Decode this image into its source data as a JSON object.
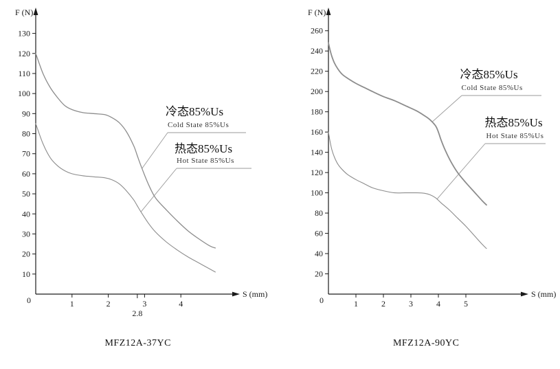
{
  "page": {
    "background": "#ffffff"
  },
  "charts": [
    {
      "caption": "MFZ12A-37YC",
      "legend": {
        "cold_cn": "冷态85%Us",
        "cold_en": "Cold State 85%Us",
        "hot_cn": "热态85%Us",
        "hot_en": "Hot State 85%Us"
      }
    },
    {
      "caption": "MFZ12A-90YC",
      "legend": {
        "cold_cn": "冷态85%Us",
        "cold_en": "Cold State 85%Us",
        "hot_cn": "热态85%Us",
        "hot_en": "Hot State 85%Us"
      }
    }
  ],
  "chart_data": [
    {
      "type": "line",
      "title": "MFZ12A-37YC",
      "xlabel": "S (mm)",
      "ylabel": "F (N)",
      "origin_label": "0",
      "xlim": [
        0,
        5.3
      ],
      "ylim": [
        0,
        135
      ],
      "xticks": [
        1,
        2,
        3,
        4
      ],
      "xtick_extra": {
        "value": 2.8,
        "label": "2.8"
      },
      "yticks": [
        10,
        20,
        30,
        40,
        50,
        60,
        70,
        80,
        90,
        100,
        110,
        120,
        130
      ],
      "grid": false,
      "legend_position": "inside-right",
      "line_color": "#8c8c8c",
      "series": [
        {
          "name": "冷态85%Us (Cold State 85%Us)",
          "key": "cold-state-curve",
          "width": 1.3,
          "points": [
            [
              0,
              120
            ],
            [
              0.2,
              110
            ],
            [
              0.4,
              103
            ],
            [
              0.6,
              98
            ],
            [
              0.8,
              94
            ],
            [
              1.0,
              92
            ],
            [
              1.3,
              90.5
            ],
            [
              1.6,
              90
            ],
            [
              1.9,
              89.5
            ],
            [
              2.1,
              88
            ],
            [
              2.3,
              85.5
            ],
            [
              2.5,
              81
            ],
            [
              2.7,
              74
            ],
            [
              2.8,
              69
            ],
            [
              2.9,
              64
            ],
            [
              3.1,
              55
            ],
            [
              3.3,
              48
            ],
            [
              3.6,
              42
            ],
            [
              3.9,
              36.5
            ],
            [
              4.2,
              31.5
            ],
            [
              4.5,
              27.5
            ],
            [
              4.8,
              24
            ],
            [
              4.95,
              23
            ]
          ]
        },
        {
          "name": "热态85%Us (Hot State 85%Us)",
          "key": "hot-state-curve",
          "width": 1.1,
          "points": [
            [
              0,
              85
            ],
            [
              0.2,
              75
            ],
            [
              0.4,
              68
            ],
            [
              0.6,
              64
            ],
            [
              0.8,
              61.5
            ],
            [
              1.0,
              60
            ],
            [
              1.3,
              59
            ],
            [
              1.6,
              58.5
            ],
            [
              1.9,
              58
            ],
            [
              2.1,
              57
            ],
            [
              2.3,
              55
            ],
            [
              2.5,
              51.5
            ],
            [
              2.7,
              47
            ],
            [
              2.8,
              44
            ],
            [
              2.9,
              41
            ],
            [
              3.1,
              35.5
            ],
            [
              3.3,
              31
            ],
            [
              3.6,
              26
            ],
            [
              3.9,
              22
            ],
            [
              4.2,
              18.5
            ],
            [
              4.5,
              15.5
            ],
            [
              4.8,
              12.5
            ],
            [
              4.95,
              11
            ]
          ]
        }
      ]
    },
    {
      "type": "line",
      "title": "MFZ12A-90YC",
      "xlabel": "S (mm)",
      "ylabel": "F (N)",
      "origin_label": "0",
      "xlim": [
        0,
        5.8
      ],
      "ylim": [
        0,
        270
      ],
      "xticks": [
        1,
        2,
        3,
        4,
        5
      ],
      "yticks": [
        20,
        40,
        60,
        80,
        100,
        120,
        140,
        160,
        180,
        200,
        220,
        240,
        260
      ],
      "grid": false,
      "legend_position": "inside-right",
      "line_color": "#8c8c8c",
      "series": [
        {
          "name": "冷态85%Us (Cold State 85%Us)",
          "key": "cold-state-curve",
          "width": 1.8,
          "points": [
            [
              0,
              248
            ],
            [
              0.05,
              242
            ],
            [
              0.12,
              235
            ],
            [
              0.22,
              228
            ],
            [
              0.35,
              222
            ],
            [
              0.5,
              217
            ],
            [
              0.7,
              213
            ],
            [
              1.0,
              208
            ],
            [
              1.3,
              204
            ],
            [
              1.6,
              200
            ],
            [
              2.0,
              195
            ],
            [
              2.4,
              191
            ],
            [
              2.8,
              186
            ],
            [
              3.2,
              181
            ],
            [
              3.5,
              176
            ],
            [
              3.7,
              172
            ],
            [
              3.9,
              166
            ],
            [
              4.0,
              160
            ],
            [
              4.1,
              152
            ],
            [
              4.25,
              142
            ],
            [
              4.45,
              131
            ],
            [
              4.7,
              120
            ],
            [
              5.0,
              110
            ],
            [
              5.3,
              101
            ],
            [
              5.6,
              92
            ],
            [
              5.75,
              88
            ]
          ]
        },
        {
          "name": "热态85%Us (Hot State 85%Us)",
          "key": "hot-state-curve",
          "width": 1.1,
          "points": [
            [
              0,
              160
            ],
            [
              0.05,
              152
            ],
            [
              0.12,
              143
            ],
            [
              0.22,
              135
            ],
            [
              0.35,
              128
            ],
            [
              0.5,
              123
            ],
            [
              0.7,
              118
            ],
            [
              1.0,
              113
            ],
            [
              1.3,
              109
            ],
            [
              1.6,
              105
            ],
            [
              2.0,
              102
            ],
            [
              2.4,
              100
            ],
            [
              2.8,
              100
            ],
            [
              3.2,
              100
            ],
            [
              3.5,
              99.5
            ],
            [
              3.7,
              98
            ],
            [
              3.9,
              95
            ],
            [
              4.1,
              90
            ],
            [
              4.4,
              83
            ],
            [
              4.7,
              75
            ],
            [
              5.0,
              67
            ],
            [
              5.3,
              58
            ],
            [
              5.6,
              49
            ],
            [
              5.75,
              45
            ]
          ]
        }
      ]
    }
  ]
}
